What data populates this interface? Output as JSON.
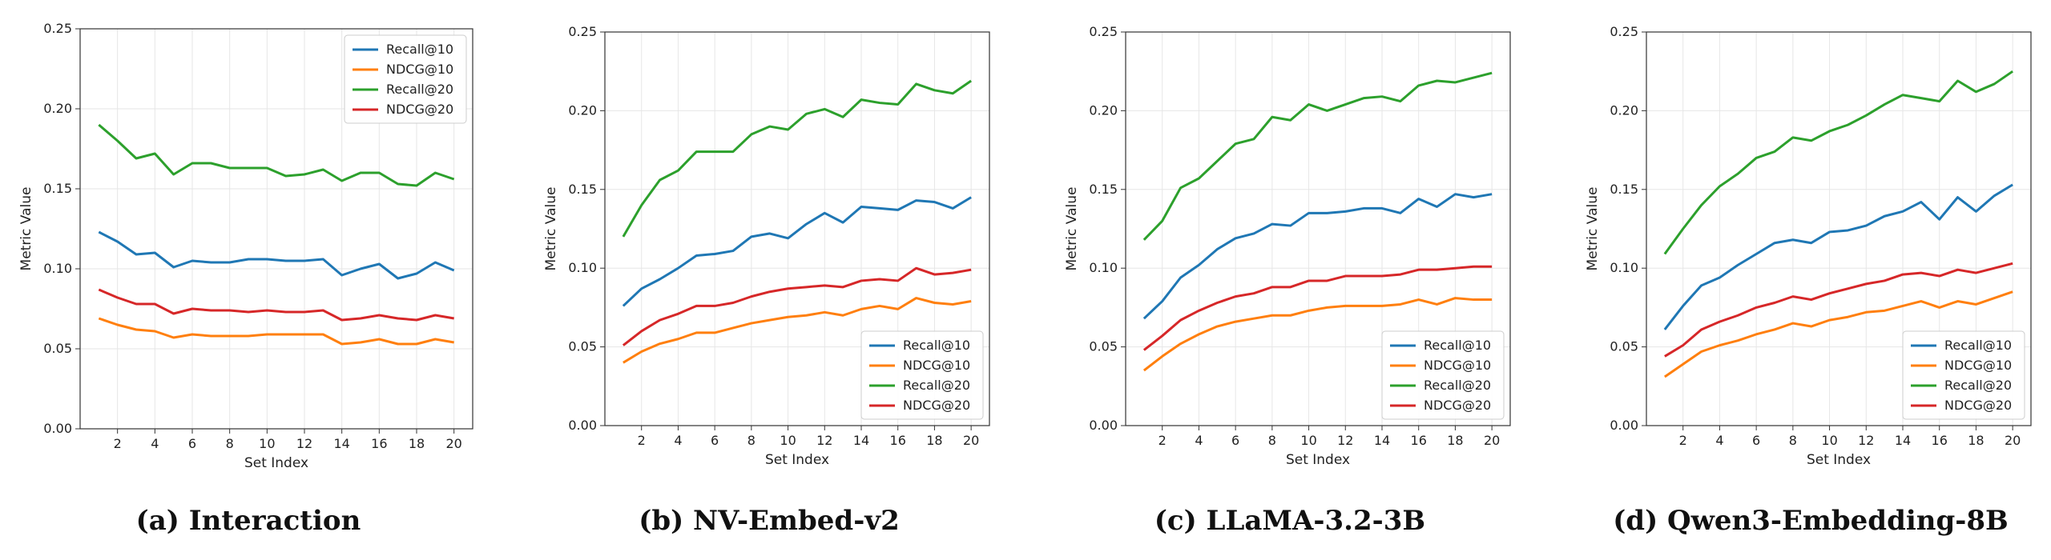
{
  "figure": {
    "captions": [
      "(a) Interaction",
      "(b) NV-Embed-v2",
      "(c) LLaMA-3.2-3B",
      "(d) Qwen3-Embedding-8B"
    ]
  },
  "colors": {
    "Recall@10": "#1f77b4",
    "NDCG@10": "#ff7f0e",
    "Recall@20": "#2ca02c",
    "NDCG@20": "#d62728"
  },
  "chart_data": [
    {
      "type": "line",
      "title": "",
      "xlabel": "Set Index",
      "ylabel": "Metric Value",
      "x": [
        1,
        2,
        3,
        4,
        5,
        6,
        7,
        8,
        9,
        10,
        11,
        12,
        13,
        14,
        15,
        16,
        17,
        18,
        19,
        20
      ],
      "xticks": [
        2,
        4,
        6,
        8,
        10,
        12,
        14,
        16,
        18,
        20
      ],
      "yticks": [
        0.0,
        0.05,
        0.1,
        0.15,
        0.2,
        0.25
      ],
      "ytick_labels": [
        "0.00",
        "0.05",
        "0.10",
        "0.15",
        "0.20",
        "0.25"
      ],
      "ylim": [
        0,
        0.25
      ],
      "xlim": [
        0,
        21
      ],
      "grid": true,
      "legend": "top-right",
      "series": [
        {
          "name": "Recall@10",
          "values": [
            0.123,
            0.117,
            0.109,
            0.11,
            0.101,
            0.105,
            0.104,
            0.104,
            0.106,
            0.106,
            0.105,
            0.105,
            0.106,
            0.096,
            0.1,
            0.103,
            0.094,
            0.097,
            0.104,
            0.099
          ]
        },
        {
          "name": "NDCG@10",
          "values": [
            0.069,
            0.065,
            0.062,
            0.061,
            0.057,
            0.059,
            0.058,
            0.058,
            0.058,
            0.059,
            0.059,
            0.059,
            0.059,
            0.053,
            0.054,
            0.056,
            0.053,
            0.053,
            0.056,
            0.054
          ]
        },
        {
          "name": "Recall@20",
          "values": [
            0.19,
            0.18,
            0.169,
            0.172,
            0.159,
            0.166,
            0.166,
            0.163,
            0.163,
            0.163,
            0.158,
            0.159,
            0.162,
            0.155,
            0.16,
            0.16,
            0.153,
            0.152,
            0.16,
            0.156
          ]
        },
        {
          "name": "NDCG@20",
          "values": [
            0.087,
            0.082,
            0.078,
            0.078,
            0.072,
            0.075,
            0.074,
            0.074,
            0.073,
            0.074,
            0.073,
            0.073,
            0.074,
            0.068,
            0.069,
            0.071,
            0.069,
            0.068,
            0.071,
            0.069
          ]
        }
      ]
    },
    {
      "type": "line",
      "title": "",
      "xlabel": "Set Index",
      "ylabel": "Metric Value",
      "x": [
        1,
        2,
        3,
        4,
        5,
        6,
        7,
        8,
        9,
        10,
        11,
        12,
        13,
        14,
        15,
        16,
        17,
        18,
        19,
        20
      ],
      "xticks": [
        2,
        4,
        6,
        8,
        10,
        12,
        14,
        16,
        18,
        20
      ],
      "yticks": [
        0.0,
        0.05,
        0.1,
        0.15,
        0.2,
        0.25
      ],
      "ytick_labels": [
        "0.00",
        "0.05",
        "0.10",
        "0.15",
        "0.20",
        "0.25"
      ],
      "ylim": [
        0,
        0.25
      ],
      "xlim": [
        0,
        21
      ],
      "grid": true,
      "legend": "bottom-right",
      "series": [
        {
          "name": "Recall@10",
          "values": [
            0.076,
            0.087,
            0.093,
            0.1,
            0.108,
            0.109,
            0.111,
            0.12,
            0.122,
            0.119,
            0.128,
            0.135,
            0.129,
            0.139,
            0.138,
            0.137,
            0.143,
            0.142,
            0.138,
            0.145
          ]
        },
        {
          "name": "NDCG@10",
          "values": [
            0.04,
            0.047,
            0.052,
            0.055,
            0.059,
            0.059,
            0.062,
            0.065,
            0.067,
            0.069,
            0.07,
            0.072,
            0.07,
            0.074,
            0.076,
            0.074,
            0.081,
            0.078,
            0.077,
            0.079
          ]
        },
        {
          "name": "Recall@20",
          "values": [
            0.12,
            0.14,
            0.156,
            0.162,
            0.174,
            0.174,
            0.174,
            0.185,
            0.19,
            0.188,
            0.198,
            0.201,
            0.196,
            0.207,
            0.205,
            0.204,
            0.217,
            0.213,
            0.211,
            0.219
          ]
        },
        {
          "name": "NDCG@20",
          "values": [
            0.051,
            0.06,
            0.067,
            0.071,
            0.076,
            0.076,
            0.078,
            0.082,
            0.085,
            0.087,
            0.088,
            0.089,
            0.088,
            0.092,
            0.093,
            0.092,
            0.1,
            0.096,
            0.097,
            0.099
          ]
        }
      ]
    },
    {
      "type": "line",
      "title": "",
      "xlabel": "Set Index",
      "ylabel": "Metric Value",
      "x": [
        1,
        2,
        3,
        4,
        5,
        6,
        7,
        8,
        9,
        10,
        11,
        12,
        13,
        14,
        15,
        16,
        17,
        18,
        19,
        20
      ],
      "xticks": [
        2,
        4,
        6,
        8,
        10,
        12,
        14,
        16,
        18,
        20
      ],
      "yticks": [
        0.0,
        0.05,
        0.1,
        0.15,
        0.2,
        0.25
      ],
      "ytick_labels": [
        "0.00",
        "0.05",
        "0.10",
        "0.15",
        "0.20",
        "0.25"
      ],
      "ylim": [
        0,
        0.25
      ],
      "xlim": [
        0,
        21
      ],
      "grid": true,
      "legend": "bottom-right",
      "series": [
        {
          "name": "Recall@10",
          "values": [
            0.068,
            0.079,
            0.094,
            0.102,
            0.112,
            0.119,
            0.122,
            0.128,
            0.127,
            0.135,
            0.135,
            0.136,
            0.138,
            0.138,
            0.135,
            0.144,
            0.139,
            0.147,
            0.145,
            0.147
          ]
        },
        {
          "name": "NDCG@10",
          "values": [
            0.035,
            0.044,
            0.052,
            0.058,
            0.063,
            0.066,
            0.068,
            0.07,
            0.07,
            0.073,
            0.075,
            0.076,
            0.076,
            0.076,
            0.077,
            0.08,
            0.077,
            0.081,
            0.08,
            0.08
          ]
        },
        {
          "name": "Recall@20",
          "values": [
            0.118,
            0.13,
            0.151,
            0.157,
            0.168,
            0.179,
            0.182,
            0.196,
            0.194,
            0.204,
            0.2,
            0.204,
            0.208,
            0.209,
            0.206,
            0.216,
            0.219,
            0.218,
            0.221,
            0.224
          ]
        },
        {
          "name": "NDCG@20",
          "values": [
            0.048,
            0.057,
            0.067,
            0.073,
            0.078,
            0.082,
            0.084,
            0.088,
            0.088,
            0.092,
            0.092,
            0.095,
            0.095,
            0.095,
            0.096,
            0.099,
            0.099,
            0.1,
            0.101,
            0.101
          ]
        }
      ]
    },
    {
      "type": "line",
      "title": "",
      "xlabel": "Set Index",
      "ylabel": "Metric Value",
      "x": [
        1,
        2,
        3,
        4,
        5,
        6,
        7,
        8,
        9,
        10,
        11,
        12,
        13,
        14,
        15,
        16,
        17,
        18,
        19,
        20
      ],
      "xticks": [
        2,
        4,
        6,
        8,
        10,
        12,
        14,
        16,
        18,
        20
      ],
      "yticks": [
        0.0,
        0.05,
        0.1,
        0.15,
        0.2,
        0.25
      ],
      "ytick_labels": [
        "0.00",
        "0.05",
        "0.10",
        "0.15",
        "0.20",
        "0.25"
      ],
      "ylim": [
        0,
        0.25
      ],
      "xlim": [
        0,
        21
      ],
      "grid": true,
      "legend": "bottom-right",
      "series": [
        {
          "name": "Recall@10",
          "values": [
            0.061,
            0.076,
            0.089,
            0.094,
            0.102,
            0.109,
            0.116,
            0.118,
            0.116,
            0.123,
            0.124,
            0.127,
            0.133,
            0.136,
            0.142,
            0.131,
            0.145,
            0.136,
            0.146,
            0.153
          ]
        },
        {
          "name": "NDCG@10",
          "values": [
            0.031,
            0.039,
            0.047,
            0.051,
            0.054,
            0.058,
            0.061,
            0.065,
            0.063,
            0.067,
            0.069,
            0.072,
            0.073,
            0.076,
            0.079,
            0.075,
            0.079,
            0.077,
            0.081,
            0.085
          ]
        },
        {
          "name": "Recall@20",
          "values": [
            0.109,
            0.125,
            0.14,
            0.152,
            0.16,
            0.17,
            0.174,
            0.183,
            0.181,
            0.187,
            0.191,
            0.197,
            0.204,
            0.21,
            0.208,
            0.206,
            0.219,
            0.212,
            0.217,
            0.225
          ]
        },
        {
          "name": "NDCG@20",
          "values": [
            0.044,
            0.051,
            0.061,
            0.066,
            0.07,
            0.075,
            0.078,
            0.082,
            0.08,
            0.084,
            0.087,
            0.09,
            0.092,
            0.096,
            0.097,
            0.095,
            0.099,
            0.097,
            0.1,
            0.103
          ]
        }
      ]
    }
  ]
}
